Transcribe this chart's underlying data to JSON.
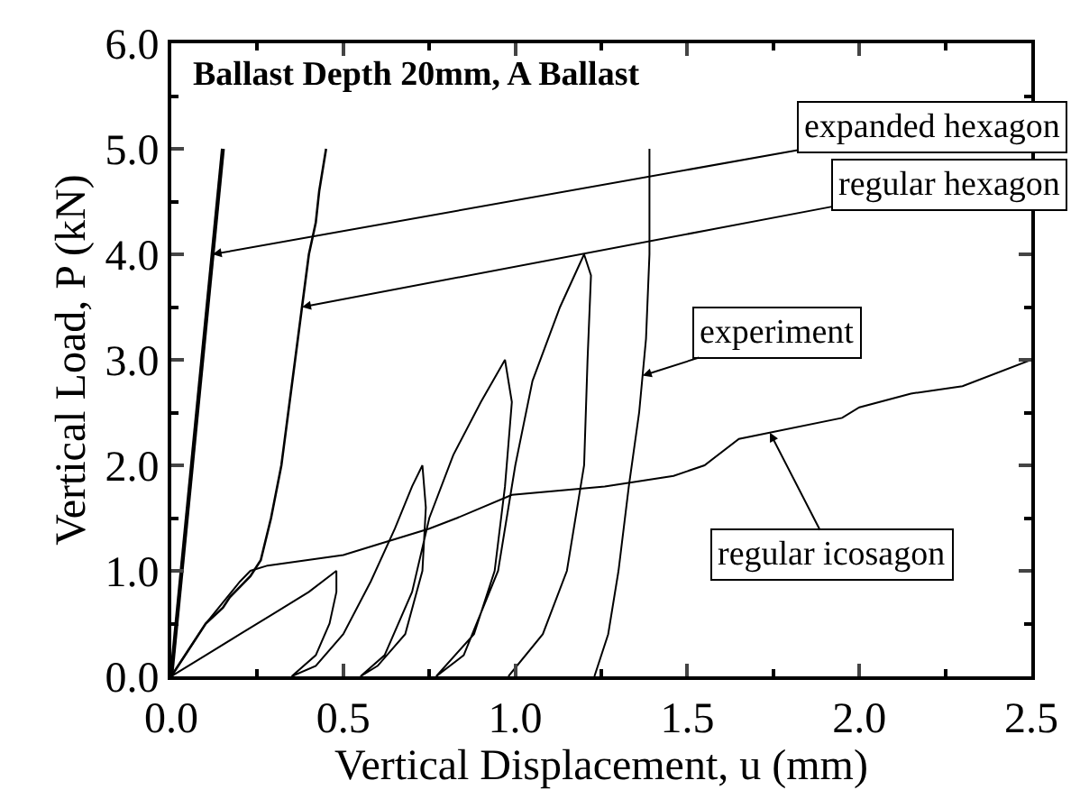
{
  "chart_data": {
    "type": "line",
    "title": "Ballast Depth 20mm, A Ballast",
    "xlabel": "Vertical Displacement, u (mm)",
    "ylabel": "Vertical Load, P (kN)",
    "xlim": [
      0,
      2.5
    ],
    "xticks": [
      {
        "value": 0,
        "label": "0.0"
      },
      {
        "value": 0.5,
        "label": "0.5"
      },
      {
        "value": 1,
        "label": "1.0"
      },
      {
        "value": 1.5,
        "label": "1.5"
      },
      {
        "value": 2,
        "label": "2.0"
      },
      {
        "value": 2.5,
        "label": "2.5"
      }
    ],
    "ylim": [
      0,
      6
    ],
    "yticks": [
      {
        "value": 0,
        "label": "0.0"
      },
      {
        "value": 1,
        "label": "1.0"
      },
      {
        "value": 2,
        "label": "2.0"
      },
      {
        "value": 3,
        "label": "3.0"
      },
      {
        "value": 4,
        "label": "4.0"
      },
      {
        "value": 5,
        "label": "5.0"
      },
      {
        "value": 6,
        "label": "6.0"
      }
    ],
    "marker": "none",
    "line_style": "solid",
    "series": [
      {
        "color": "#000000",
        "x": [
          0,
          0.15
        ],
        "values": [
          0,
          5
        ]
      },
      {
        "color": "#000000",
        "x": [
          0,
          0.05,
          0.1,
          0.15,
          0.17,
          0.2,
          0.23,
          0.26,
          0.29,
          0.32,
          0.34,
          0.36,
          0.38,
          0.4,
          0.42,
          0.43,
          0.45
        ],
        "values": [
          0,
          0.25,
          0.5,
          0.65,
          0.75,
          0.85,
          0.95,
          1.1,
          1.5,
          2.0,
          2.5,
          3.0,
          3.5,
          4.0,
          4.3,
          4.6,
          5.0
        ]
      },
      {
        "color": "#000000",
        "x": [
          0,
          0.1,
          0.2,
          0.3,
          0.4,
          0.48,
          0.48,
          0.46,
          0.42,
          0.35,
          0.42,
          0.5,
          0.58,
          0.65,
          0.7,
          0.73,
          0.74,
          0.73,
          0.68,
          0.6,
          0.55,
          0.62,
          0.7,
          0.75,
          0.82,
          0.9,
          0.97,
          0.99,
          0.97,
          0.94,
          0.88,
          0.77,
          0.85,
          0.95,
          1.0,
          1.05,
          1.13,
          1.2,
          1.22,
          1.21,
          1.2,
          1.15,
          1.08,
          0.98,
          1.1,
          1.23,
          1.27,
          1.3,
          1.33,
          1.36,
          1.38,
          1.39,
          1.39
        ],
        "values": [
          0,
          0.2,
          0.4,
          0.6,
          0.8,
          1.0,
          0.8,
          0.5,
          0.2,
          0,
          0.1,
          0.4,
          0.9,
          1.4,
          1.8,
          2.0,
          1.6,
          1.0,
          0.4,
          0.1,
          0,
          0.2,
          0.8,
          1.5,
          2.1,
          2.6,
          3.0,
          2.6,
          1.8,
          1.0,
          0.4,
          0,
          0.2,
          1.0,
          2.0,
          2.8,
          3.5,
          4.0,
          3.8,
          3.0,
          2.0,
          1.0,
          0.4,
          0,
          null,
          0,
          0.4,
          1.0,
          1.8,
          2.5,
          3.2,
          4.0,
          5.0
        ]
      },
      {
        "color": "#000000",
        "x": [
          0,
          0.1,
          0.2,
          0.23,
          0.28,
          0.5,
          0.6,
          0.75,
          0.83,
          0.99,
          1.26,
          1.46,
          1.55,
          1.65,
          1.95,
          2.0,
          2.15,
          2.3,
          2.5
        ],
        "values": [
          0,
          0.5,
          0.9,
          1.0,
          1.05,
          1.15,
          1.25,
          1.4,
          1.5,
          1.72,
          1.8,
          1.9,
          2.0,
          2.25,
          2.45,
          2.55,
          2.68,
          2.75,
          3.0
        ]
      }
    ],
    "annotations": [
      {
        "text": "expanded hexagon",
        "x": 0.12,
        "y": 4.0
      },
      {
        "text": "regular hexagon",
        "x": 0.38,
        "y": 3.5
      },
      {
        "text": "experiment",
        "x": 1.37,
        "y": 2.85
      },
      {
        "text": "regular icosagon",
        "x": 1.74,
        "y": 2.31
      }
    ]
  }
}
